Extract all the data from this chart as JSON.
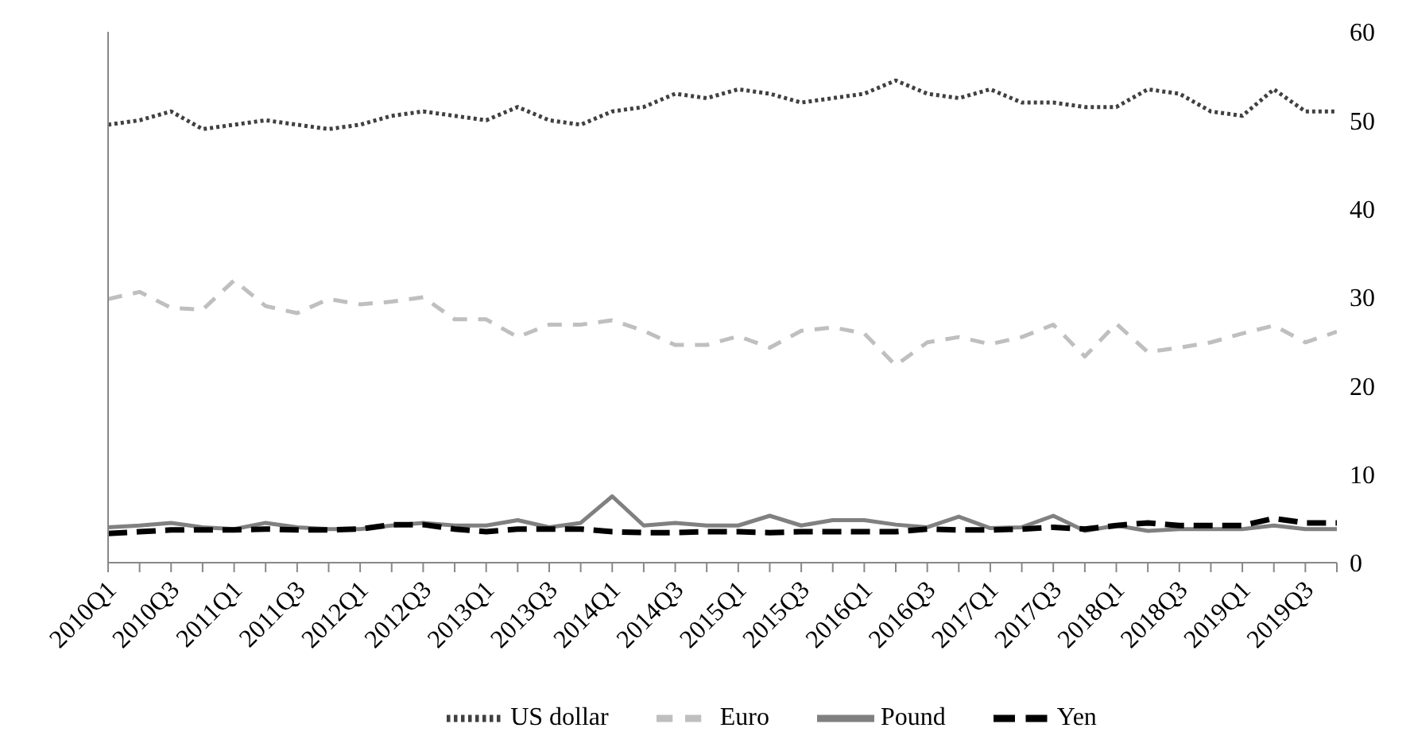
{
  "chart_data": {
    "type": "line",
    "categories": [
      "2010Q1",
      null,
      "2010Q3",
      null,
      "2011Q1",
      null,
      "2011Q3",
      null,
      "2012Q1",
      null,
      "2012Q3",
      null,
      "2013Q1",
      null,
      "2013Q3",
      null,
      "2014Q1",
      null,
      "2014Q3",
      null,
      "2015Q1",
      null,
      "2015Q3",
      null,
      "2016Q1",
      null,
      "2016Q3",
      null,
      "2017Q1",
      null,
      "2017Q3",
      null,
      "2018Q1",
      null,
      "2018Q3",
      null,
      "2019Q1",
      null,
      "2019Q3",
      null
    ],
    "series": [
      {
        "name": "US dollar",
        "color": "#404040",
        "line_style": "dotted",
        "values": [
          49.5,
          50,
          51,
          49,
          49.5,
          50,
          49.5,
          49,
          49.5,
          50.5,
          51,
          50.5,
          50,
          51.5,
          50,
          49.5,
          51,
          51.5,
          53,
          52.5,
          53.5,
          53,
          52,
          52.5,
          53,
          54.5,
          53,
          52.5,
          53.5,
          52,
          52,
          51.5,
          51.5,
          53.5,
          53,
          51,
          50.5,
          53.5,
          51,
          51
        ]
      },
      {
        "name": "Euro",
        "color": "#bfbfbf",
        "line_style": "dashed",
        "values": [
          29.8,
          30.6,
          28.8,
          28.6,
          31.9,
          29,
          28.2,
          29.8,
          29.2,
          29.5,
          30,
          27.5,
          27.5,
          25.5,
          26.9,
          26.9,
          27.4,
          26.2,
          24.6,
          24.6,
          25.6,
          24.3,
          26.2,
          26.6,
          25.9,
          22.3,
          24.9,
          25.5,
          24.7,
          25.5,
          26.9,
          23.3,
          27,
          23.8,
          24.3,
          24.9,
          25.9,
          26.8,
          24.9,
          26.1
        ]
      },
      {
        "name": "Pound",
        "color": "#808080",
        "line_style": "solid",
        "values": [
          4,
          4.2,
          4.5,
          4,
          3.8,
          4.5,
          4,
          3.8,
          3.8,
          4.2,
          4.5,
          4.2,
          4.2,
          4.8,
          4,
          4.5,
          7.5,
          4.2,
          4.5,
          4.2,
          4.2,
          5.3,
          4.2,
          4.8,
          4.8,
          4.3,
          4,
          5.2,
          3.9,
          4,
          5.3,
          3.6,
          4.2,
          3.6,
          3.8,
          3.8,
          3.8,
          4.2,
          3.8,
          3.8
        ]
      },
      {
        "name": "Yen",
        "color": "#000000",
        "line_style": "dashed",
        "values": [
          3.3,
          3.5,
          3.7,
          3.7,
          3.7,
          3.8,
          3.7,
          3.7,
          3.8,
          4.3,
          4.3,
          3.8,
          3.5,
          3.8,
          3.8,
          3.8,
          3.5,
          3.4,
          3.4,
          3.5,
          3.5,
          3.4,
          3.5,
          3.5,
          3.5,
          3.5,
          3.8,
          3.7,
          3.7,
          3.8,
          4,
          3.8,
          4.2,
          4.5,
          4.2,
          4.2,
          4.2,
          5,
          4.5,
          4.5
        ]
      }
    ],
    "ylim": [
      0,
      60
    ],
    "yticks": [
      0,
      10,
      20,
      30,
      40,
      50,
      60
    ],
    "grid": false,
    "legend": "bottom",
    "marker": "none"
  }
}
